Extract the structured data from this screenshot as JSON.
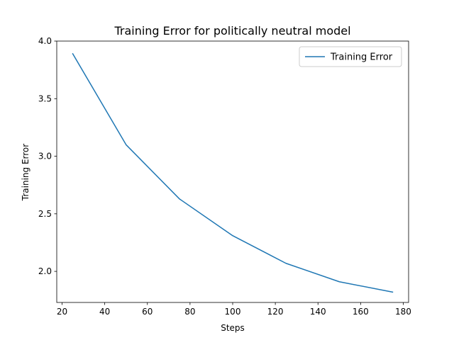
{
  "chart_data": {
    "type": "line",
    "title": "Training Error for politically neutral model",
    "xlabel": "Steps",
    "ylabel": "Training Error",
    "xlim": [
      17.5,
      182.5
    ],
    "ylim": [
      1.73,
      4.0
    ],
    "xticks": [
      20,
      40,
      60,
      80,
      100,
      120,
      140,
      160,
      180
    ],
    "yticks": [
      2.0,
      2.5,
      3.0,
      3.5,
      4.0
    ],
    "grid": false,
    "legend_position": "top-right",
    "series": [
      {
        "name": "Training Error",
        "color": "#1f77b4",
        "x": [
          25,
          50,
          75,
          100,
          125,
          150,
          175
        ],
        "y": [
          3.89,
          3.1,
          2.63,
          2.31,
          2.07,
          1.91,
          1.82
        ]
      }
    ]
  }
}
